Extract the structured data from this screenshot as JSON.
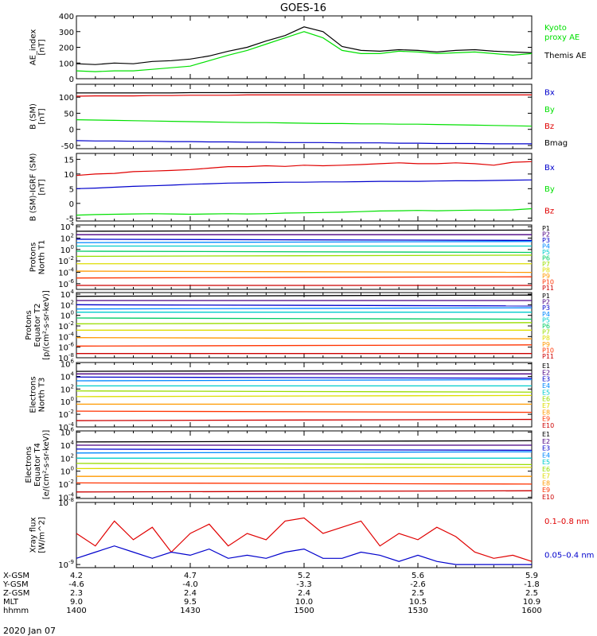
{
  "title": "GOES-16",
  "date": "2020 Jan 07",
  "colors": {
    "black": "#000000",
    "green": "#00e000",
    "red": "#e00000",
    "blue": "#0000cc",
    "P1": "#000000",
    "P2": "#4b0082",
    "P3": "#0000cc",
    "P4": "#0088ff",
    "P5": "#00cccc",
    "P6": "#00cc66",
    "P7": "#99dd00",
    "P8": "#dddd00",
    "P9": "#ff9900",
    "P10": "#ff3300",
    "P11": "#cc0000"
  },
  "panels": [
    {
      "key": "ae",
      "ylabel": [
        "AE_index",
        "[nT]"
      ],
      "ylim": [
        0,
        400
      ],
      "ticks": [
        {
          "v": 0,
          "t": "0"
        },
        {
          "v": 100,
          "t": "100"
        },
        {
          "v": 200,
          "t": "200"
        },
        {
          "v": 300,
          "t": "300"
        },
        {
          "v": 400,
          "t": "400"
        }
      ],
      "legend": [
        {
          "text": "Kyoto",
          "color": "#00e000",
          "pos": 0.18
        },
        {
          "text": "proxy AE",
          "color": "#00e000",
          "pos": 0.33
        },
        {
          "text": "Themis AE",
          "color": "#000000",
          "pos": 0.62
        }
      ]
    },
    {
      "key": "bsm",
      "ylabel": [
        "B (SM)",
        "[nT]"
      ],
      "ylim": [
        -60,
        140
      ],
      "ticks": [
        {
          "v": -50,
          "t": "-50"
        },
        {
          "v": 0,
          "t": "0"
        },
        {
          "v": 50,
          "t": "50"
        },
        {
          "v": 100,
          "t": "100"
        }
      ],
      "legend": [
        {
          "text": "Bx",
          "color": "#0000cc",
          "pos": 0.12
        },
        {
          "text": "By",
          "color": "#00e000",
          "pos": 0.38
        },
        {
          "text": "Bz",
          "color": "#e00000",
          "pos": 0.64
        },
        {
          "text": "Bmag",
          "color": "#000000",
          "pos": 0.9
        }
      ]
    },
    {
      "key": "bigrf",
      "ylabel": [
        "B (SM)-IGRF (SM)",
        "[nT]"
      ],
      "ylim": [
        -6,
        17
      ],
      "ticks": [
        {
          "v": -5,
          "t": "-5"
        },
        {
          "v": 0,
          "t": "0"
        },
        {
          "v": 5,
          "t": "5"
        },
        {
          "v": 10,
          "t": "10"
        },
        {
          "v": 15,
          "t": "15"
        }
      ],
      "legend": [
        {
          "text": "Bx",
          "color": "#0000cc",
          "pos": 0.2
        },
        {
          "text": "By",
          "color": "#00e000",
          "pos": 0.52
        },
        {
          "text": "Bz",
          "color": "#e00000",
          "pos": 0.84
        }
      ]
    },
    {
      "key": "pnorth",
      "ylabel": [
        "Protons",
        "North T1"
      ],
      "ylim": [
        -7,
        4.3
      ],
      "log": true,
      "ticks": [
        {
          "v": 4,
          "t": "10^4"
        },
        {
          "v": 2,
          "t": "10^2"
        },
        {
          "v": 0,
          "t": "10^0"
        },
        {
          "v": -2,
          "t": "10^-2"
        },
        {
          "v": -4,
          "t": "10^-4"
        },
        {
          "v": -6,
          "t": "10^-6"
        }
      ],
      "channels": [
        "P1",
        "P2",
        "P3",
        "P4",
        "P5",
        "P6",
        "P7",
        "P8",
        "P9",
        "P10",
        "P11"
      ]
    },
    {
      "key": "peq",
      "ylabel": [
        "Protons",
        "Equator T2",
        "[p/(cm²-s-sr-keV)]"
      ],
      "ylim": [
        -8,
        4.3
      ],
      "log": true,
      "ticks": [
        {
          "v": 4,
          "t": "10^4"
        },
        {
          "v": 2,
          "t": "10^2"
        },
        {
          "v": 0,
          "t": "10^0"
        },
        {
          "v": -2,
          "t": "10^-2"
        },
        {
          "v": -4,
          "t": "10^-4"
        },
        {
          "v": -6,
          "t": "10^-6"
        },
        {
          "v": -8,
          "t": "10^-8"
        }
      ],
      "channels": [
        "P1",
        "P2",
        "P3",
        "P4",
        "P5",
        "P6",
        "P7",
        "P8",
        "P9",
        "P10",
        "P11"
      ]
    },
    {
      "key": "enorth",
      "ylabel": [
        "Electrons",
        "North T3"
      ],
      "ylim": [
        -4,
        6.2
      ],
      "log": true,
      "ticks": [
        {
          "v": 6,
          "t": "10^6"
        },
        {
          "v": 4,
          "t": "10^4"
        },
        {
          "v": 2,
          "t": "10^2"
        },
        {
          "v": 0,
          "t": "10^0"
        },
        {
          "v": -2,
          "t": "10^-2"
        },
        {
          "v": -4,
          "t": "10^-4"
        }
      ],
      "channels": [
        "E1",
        "E2",
        "E3",
        "E4",
        "E5",
        "E6",
        "E7",
        "E8",
        "E9",
        "E10"
      ]
    },
    {
      "key": "eeq",
      "ylabel": [
        "Electrons",
        "Equator T4",
        "[e/(cm²-s-sr-keV)]"
      ],
      "ylim": [
        -4.2,
        6.2
      ],
      "log": true,
      "ticks": [
        {
          "v": 6,
          "t": "10^6"
        },
        {
          "v": 4,
          "t": "10^4"
        },
        {
          "v": 2,
          "t": "10^2"
        },
        {
          "v": 0,
          "t": "10^0"
        },
        {
          "v": -2,
          "t": "10^-2"
        },
        {
          "v": -4,
          "t": "10^-4"
        }
      ],
      "channels": [
        "E1",
        "E2",
        "E3",
        "E4",
        "E5",
        "E6",
        "E7",
        "E8",
        "E9",
        "E10"
      ]
    },
    {
      "key": "xray",
      "ylabel": [
        "Xray flux",
        "[W/m^2]"
      ],
      "ylim": [
        -9.05,
        -8.0
      ],
      "log": true,
      "ticks": [
        {
          "v": -8,
          "t": "10^-8"
        },
        {
          "v": -9,
          "t": "10^-9"
        }
      ],
      "legend": [
        {
          "text": "0.1–0.8 nm",
          "color": "#e00000",
          "pos": 0.28
        },
        {
          "text": "0.05–0.4 nm",
          "color": "#0000cc",
          "pos": 0.8
        }
      ]
    }
  ],
  "channel_colors": {
    "P1": "#000000",
    "P2": "#4b0082",
    "P3": "#0000cc",
    "P4": "#0088ff",
    "P5": "#00cccc",
    "P6": "#00cc66",
    "P7": "#99dd00",
    "P8": "#dddd00",
    "P9": "#ff9900",
    "P10": "#ff3300",
    "P11": "#cc0000",
    "E1": "#000000",
    "E2": "#4b0082",
    "E3": "#0000cc",
    "E4": "#0088ff",
    "E5": "#00cccc",
    "E6": "#99dd00",
    "E7": "#dddd00",
    "E8": "#ff9900",
    "E9": "#ff3300",
    "E10": "#cc0000"
  },
  "xaxis": {
    "labels": [
      "X-GSM",
      "Y-GSM",
      "Z-GSM",
      "MLT",
      "hhmm"
    ],
    "columns": [
      {
        "frac": 0.0,
        "values": [
          "4.2",
          "-4.6",
          "2.3",
          "9.0",
          "1400"
        ]
      },
      {
        "frac": 0.25,
        "values": [
          "4.7",
          "-4.0",
          "2.4",
          "9.5",
          "1430"
        ]
      },
      {
        "frac": 0.5,
        "values": [
          "5.2",
          "-3.3",
          "2.4",
          "10.0",
          "1500"
        ]
      },
      {
        "frac": 0.75,
        "values": [
          "5.6",
          "-2.6",
          "2.5",
          "10.5",
          "1530"
        ]
      },
      {
        "frac": 1.0,
        "values": [
          "5.9",
          "-1.8",
          "2.5",
          "10.9",
          "1600"
        ]
      }
    ]
  },
  "chart_data": {
    "type": "line",
    "title": "GOES-16",
    "x_unit": "hhmm",
    "x": [
      1400,
      1405,
      1410,
      1415,
      1420,
      1425,
      1430,
      1435,
      1440,
      1445,
      1450,
      1455,
      1500,
      1505,
      1510,
      1515,
      1520,
      1525,
      1530,
      1535,
      1540,
      1545,
      1550,
      1555,
      1600
    ],
    "series": [
      {
        "name": "Themis AE",
        "panel": "ae",
        "values": [
          95,
          90,
          100,
          95,
          110,
          115,
          125,
          145,
          175,
          200,
          240,
          275,
          330,
          300,
          205,
          180,
          175,
          185,
          180,
          170,
          180,
          185,
          175,
          170,
          165
        ]
      },
      {
        "name": "Kyoto proxy AE",
        "panel": "ae",
        "values": [
          50,
          45,
          50,
          50,
          60,
          70,
          80,
          115,
          150,
          180,
          220,
          260,
          300,
          260,
          180,
          160,
          160,
          175,
          170,
          160,
          165,
          170,
          160,
          150,
          160
        ]
      },
      {
        "name": "Bx",
        "panel": "bsm",
        "values": [
          -35,
          -36,
          -36,
          -37,
          -37,
          -38,
          -38,
          -39,
          -39,
          -40,
          -40,
          -41,
          -41,
          -41,
          -42,
          -42,
          -42,
          -43,
          -43,
          -44,
          -44,
          -44,
          -45,
          -45,
          -45
        ]
      },
      {
        "name": "By",
        "panel": "bsm",
        "values": [
          30,
          29,
          28,
          27,
          26,
          25,
          24,
          23,
          22,
          21,
          21,
          20,
          19,
          18,
          18,
          17,
          17,
          16,
          16,
          15,
          14,
          13,
          12,
          11,
          10
        ]
      },
      {
        "name": "Bz",
        "panel": "bsm",
        "values": [
          103,
          104,
          104,
          104,
          105,
          105,
          106,
          106,
          106,
          107,
          107,
          107,
          107,
          107,
          107,
          107,
          107,
          107,
          107,
          107,
          107,
          107,
          107,
          107,
          107
        ]
      },
      {
        "name": "Bmag",
        "panel": "bsm",
        "values": [
          113,
          113,
          113,
          113,
          113,
          113,
          114,
          114,
          114,
          114,
          114,
          114,
          114,
          114,
          114,
          114,
          114,
          114,
          114,
          114,
          114,
          114,
          114,
          114,
          114
        ]
      },
      {
        "name": "Bx",
        "panel": "bigrf",
        "values": [
          5,
          5.2,
          5.5,
          5.8,
          6,
          6.2,
          6.5,
          6.7,
          6.9,
          7,
          7.1,
          7.2,
          7.2,
          7.3,
          7.3,
          7.4,
          7.5,
          7.5,
          7.5,
          7.6,
          7.7,
          7.7,
          7.8,
          7.9,
          8
        ]
      },
      {
        "name": "By",
        "panel": "bigrf",
        "values": [
          -4,
          -3.8,
          -3.7,
          -3.6,
          -3.5,
          -3.6,
          -3.7,
          -3.6,
          -3.5,
          -3.6,
          -3.5,
          -3.3,
          -3.2,
          -3.1,
          -3,
          -2.8,
          -2.6,
          -2.5,
          -2.4,
          -2.5,
          -2.4,
          -2.3,
          -2.3,
          -2.2,
          -1.8
        ]
      },
      {
        "name": "Bz",
        "panel": "bigrf",
        "values": [
          9.5,
          10,
          10.2,
          10.8,
          11,
          11.2,
          11.5,
          12,
          12.5,
          12.5,
          12.8,
          12.6,
          13,
          12.8,
          13,
          13.2,
          13.5,
          13.8,
          13.5,
          13.5,
          13.8,
          13.5,
          13,
          14,
          14.2
        ]
      },
      {
        "name": "0.1–0.8 nm",
        "panel": "xray",
        "values": [
          -8.5,
          -8.7,
          -8.3,
          -8.6,
          -8.4,
          -8.8,
          -8.5,
          -8.35,
          -8.7,
          -8.5,
          -8.6,
          -8.3,
          -8.25,
          -8.5,
          -8.4,
          -8.3,
          -8.7,
          -8.5,
          -8.6,
          -8.4,
          -8.55,
          -8.8,
          -8.9,
          -8.85,
          -8.95
        ]
      },
      {
        "name": "0.05–0.4 nm",
        "panel": "xray",
        "values": [
          -8.9,
          -8.8,
          -8.7,
          -8.8,
          -8.9,
          -8.8,
          -8.85,
          -8.75,
          -8.9,
          -8.85,
          -8.9,
          -8.8,
          -8.75,
          -8.9,
          -8.9,
          -8.8,
          -8.85,
          -8.95,
          -8.85,
          -8.95,
          -9.0,
          -9.0,
          -9.0,
          -9.0,
          -9.0
        ]
      }
    ],
    "flux_levels": {
      "pnorth": [
        3.2,
        2.6,
        1.8,
        1.2,
        0.6,
        -0.3,
        -1.2,
        -2.5,
        -3.8,
        -5.0,
        -6.3
      ],
      "peq": [
        3.6,
        2.8,
        2.0,
        1.2,
        0.6,
        -0.5,
        -1.6,
        -2.8,
        -4.2,
        -5.8,
        -7.2
      ],
      "enorth": [
        4.8,
        4.4,
        3.9,
        3.3,
        2.5,
        1.7,
        0.8,
        -0.4,
        -1.5,
        -3.0
      ],
      "eeq": [
        4.5,
        4.0,
        3.4,
        2.8,
        2.0,
        1.2,
        0.4,
        -0.8,
        -1.8,
        -3.2
      ]
    }
  }
}
